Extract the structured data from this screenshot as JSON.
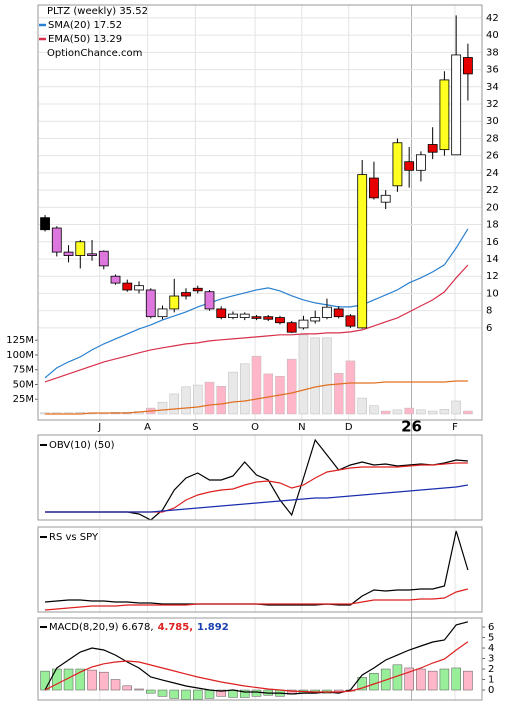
{
  "chart_data": [
    {
      "type": "candlestick",
      "title": "PLTZ (weekly) 35.52",
      "annotation": "OptionChance.com",
      "xlim": [
        -0.6,
        37.2
      ],
      "xticks": [
        {
          "value": 4.66,
          "label": "J"
        },
        {
          "value": 8.73,
          "label": "A"
        },
        {
          "value": 12.8,
          "label": "S"
        },
        {
          "value": 17.88,
          "label": "O"
        },
        {
          "value": 21.86,
          "label": "N"
        },
        {
          "value": 25.85,
          "label": "D"
        },
        {
          "value": 31.2,
          "label": "26"
        },
        {
          "value": 34.9,
          "label": "F"
        }
      ],
      "ylim": [
        -4.7,
        43.5
      ],
      "yticks": [
        6,
        8,
        10,
        12,
        14,
        16,
        18,
        20,
        22,
        24,
        26,
        28,
        30,
        32,
        34,
        36,
        38,
        40,
        42
      ],
      "grid": true,
      "open": [
        18.8,
        17.6,
        14.8,
        14.4,
        14.6,
        14.9,
        12.0,
        11.2,
        10.4,
        10.4,
        7.3,
        8.2,
        9.7,
        10.3,
        10.2,
        8.2,
        7.2,
        7.2,
        7.3,
        7.3,
        7.2,
        6.6,
        6.0,
        6.8,
        7.2,
        8.2,
        7.4,
        6.0,
        23.4,
        20.6,
        22.5,
        25.3,
        24.3,
        27.3,
        26.7,
        26.1,
        37.4
      ],
      "high": [
        19.1,
        17.8,
        15.6,
        16.2,
        16.2,
        15.0,
        12.2,
        11.6,
        11.4,
        10.6,
        8.6,
        11.7,
        10.6,
        10.9,
        10.4,
        8.5,
        7.9,
        7.8,
        7.5,
        7.5,
        7.4,
        6.8,
        7.4,
        8.0,
        9.4,
        8.5,
        7.6,
        25.5,
        25.3,
        22.0,
        28.0,
        27.0,
        26.5,
        29.3,
        35.8,
        42.3,
        39.0
      ],
      "low": [
        17.2,
        14.3,
        13.6,
        12.9,
        13.8,
        12.8,
        11.0,
        10.2,
        10.0,
        7.1,
        7.0,
        7.8,
        9.3,
        10.0,
        8.0,
        7.0,
        7.0,
        6.9,
        6.9,
        6.8,
        6.4,
        5.4,
        5.8,
        6.5,
        7.0,
        7.1,
        6.0,
        5.9,
        20.9,
        19.8,
        21.8,
        22.3,
        23.0,
        25.6,
        26.0,
        26.1,
        32.4
      ],
      "close": [
        17.4,
        14.8,
        14.4,
        16.0,
        14.4,
        13.2,
        11.2,
        10.4,
        10.9,
        7.3,
        8.2,
        9.7,
        10.1,
        10.6,
        8.2,
        7.2,
        7.6,
        7.6,
        7.1,
        7.0,
        6.6,
        5.5,
        6.9,
        7.2,
        8.4,
        7.3,
        6.2,
        23.8,
        21.1,
        21.4,
        27.5,
        24.3,
        26.1,
        26.4,
        34.8,
        37.7,
        35.5
      ],
      "candle_colors": [
        "#000000",
        "#dd77dd",
        "#dd77dd",
        "#ffff22",
        "#dd77dd",
        "#dd77dd",
        "#dd77dd",
        "#e60000",
        "#ffffff",
        "#dd77dd",
        "#ffffff",
        "#ffff22",
        "#e60000",
        "#e60000",
        "#dd77dd",
        "#e60000",
        "#ffffff",
        "#ffffff",
        "#e60000",
        "#e60000",
        "#e60000",
        "#e60000",
        "#ffffff",
        "#ffffff",
        "#ffffff",
        "#e60000",
        "#e60000",
        "#ffff22",
        "#e60000",
        "#ffffff",
        "#ffff22",
        "#e60000",
        "#ffffff",
        "#e60000",
        "#ffff22",
        "#ffffff",
        "#e60000"
      ],
      "series": [
        {
          "name": "SMA(20) 17.52",
          "color": "#2a80d0",
          "values": [
            0.2,
            1.35,
            2.05,
            2.63,
            3.44,
            4.14,
            4.72,
            5.3,
            5.88,
            6.35,
            6.93,
            7.39,
            7.86,
            8.44,
            8.9,
            9.37,
            9.72,
            10.06,
            10.41,
            10.64,
            10.3,
            9.72,
            9.25,
            8.9,
            8.67,
            8.44,
            8.44,
            8.67,
            9.25,
            9.83,
            10.41,
            11.23,
            11.81,
            12.5,
            13.32,
            15.29,
            17.5
          ]
        },
        {
          "name": "EMA(50) 13.29",
          "color": "#d8304a",
          "values": [
            -0.27,
            0.19,
            0.66,
            1.12,
            1.58,
            2.05,
            2.4,
            2.75,
            3.1,
            3.44,
            3.68,
            3.91,
            4.14,
            4.26,
            4.49,
            4.61,
            4.72,
            4.84,
            4.95,
            5.07,
            5.19,
            5.19,
            5.3,
            5.3,
            5.42,
            5.42,
            5.53,
            5.77,
            6.23,
            6.7,
            7.16,
            7.86,
            8.55,
            9.25,
            10.18,
            11.81,
            13.3
          ]
        }
      ],
      "y2lim": [
        -10.2,
        693.2
      ],
      "y2ticks": [
        {
          "value": 25,
          "label": "25M"
        },
        {
          "value": 50,
          "label": "50M"
        },
        {
          "value": 75,
          "label": "75M"
        },
        {
          "value": 100,
          "label": "100M"
        },
        {
          "value": 125,
          "label": "125M"
        }
      ],
      "volume": [
        2,
        2,
        2,
        3,
        2,
        2,
        3,
        3,
        4,
        10,
        20,
        34,
        46,
        49,
        54,
        47,
        71,
        85,
        98,
        68,
        64,
        93,
        134,
        129,
        129,
        69,
        90,
        27,
        14,
        5,
        7,
        10,
        7,
        5,
        8,
        22,
        5
      ],
      "volume_colors": [
        "#e8e8e8",
        "#e8e8e8",
        "#e8e8e8",
        "#e8e8e8",
        "#e8e8e8",
        "#e8e8e8",
        "#e8e8e8",
        "#e8e8e8",
        "#e8e8e8",
        "#ffb6c8",
        "#e8e8e8",
        "#e8e8e8",
        "#e8e8e8",
        "#e8e8e8",
        "#ffb6c8",
        "#ffb6c8",
        "#e8e8e8",
        "#e8e8e8",
        "#ffb6c8",
        "#ffb6c8",
        "#ffb6c8",
        "#ffb6c8",
        "#e8e8e8",
        "#e8e8e8",
        "#e8e8e8",
        "#ffb6c8",
        "#ffb6c8",
        "#e8e8e8",
        "#e8e8e8",
        "#ffb6c8",
        "#e8e8e8",
        "#ffb6c8",
        "#e8e8e8",
        "#e8e8e8",
        "#e8e8e8",
        "#e8e8e8",
        "#ffb6c8"
      ],
      "volume_average": [
        0,
        0,
        0,
        0,
        1.7,
        1.7,
        1.7,
        1.7,
        3.4,
        5.1,
        6.8,
        8.5,
        10.2,
        11.9,
        15.3,
        16.9,
        20.3,
        22,
        25.4,
        28.8,
        32.2,
        35.6,
        40.7,
        45.8,
        49.2,
        50.8,
        52.5,
        52.5,
        52.5,
        54.2,
        54.2,
        54.2,
        54.2,
        54.2,
        54.2,
        55.9,
        55.9
      ],
      "volume_average_color": "#e07020"
    },
    {
      "type": "line",
      "title": "OBV(10) (50)",
      "ylim": [
        0,
        85
      ],
      "series": [
        {
          "color": "#000000",
          "values": [
            8,
            8,
            8,
            8,
            8,
            8,
            8,
            8,
            6,
            0,
            10,
            30,
            42,
            47,
            40,
            40,
            44,
            58,
            45,
            40,
            20,
            5,
            42,
            80,
            65,
            50,
            55,
            58,
            55,
            56,
            54,
            55,
            56,
            55,
            57,
            60,
            59
          ]
        },
        {
          "color": "#dd2020",
          "values": [
            8,
            8,
            8,
            8,
            8,
            8,
            8,
            8,
            8,
            8,
            8,
            12,
            20,
            25,
            28,
            30,
            31,
            35,
            38,
            39,
            37,
            32,
            35,
            42,
            48,
            50,
            52,
            53,
            53,
            53,
            53,
            54,
            55,
            55,
            56,
            57,
            57
          ]
        },
        {
          "color": "#1a2fb0",
          "values": [
            8,
            8,
            8,
            8,
            8,
            8,
            8,
            8,
            8,
            8,
            9,
            10,
            11,
            12,
            13,
            14,
            15,
            16,
            17,
            18,
            19,
            20,
            21,
            22,
            22,
            23,
            24,
            25,
            26,
            27,
            28,
            29,
            30,
            31,
            32,
            33,
            35
          ]
        }
      ]
    },
    {
      "type": "line",
      "title": "RS vs SPY",
      "ylim": [
        0,
        85
      ],
      "series": [
        {
          "color": "#000000",
          "values": [
            10,
            11,
            12,
            12,
            11,
            11,
            10,
            10,
            9,
            9,
            8,
            8,
            8,
            8,
            8,
            8,
            8,
            8,
            8,
            7,
            7,
            7,
            7,
            7,
            8,
            7,
            7,
            16,
            22,
            21,
            22,
            22,
            23,
            23,
            26,
            81,
            42
          ]
        },
        {
          "color": "#dd2020",
          "values": [
            2,
            3,
            4,
            5,
            6,
            6,
            6,
            7,
            7,
            7,
            7,
            7,
            7,
            8,
            8,
            8,
            8,
            8,
            8,
            8,
            8,
            8,
            8,
            8,
            8,
            8,
            8,
            10,
            12,
            12,
            12,
            12,
            13,
            13,
            14,
            20,
            23
          ]
        }
      ]
    },
    {
      "type": "macd",
      "title": "MACD(8,20,9) 6.678,",
      "title_values": [
        {
          "text": "4.785,",
          "color": "#dd2020"
        },
        {
          "text": "1.892",
          "color": "#1a3fb0"
        }
      ],
      "ylim": [
        -0.95,
        6.86
      ],
      "yticks": [
        0,
        1,
        2,
        3,
        4,
        5,
        6
      ],
      "series": [
        {
          "color": "#000000",
          "values": [
            0,
            2.1,
            2.86,
            3.62,
            4.0,
            3.81,
            3.33,
            2.67,
            2.1,
            1.24,
            0.95,
            0.67,
            0.38,
            0.19,
            0,
            -0.1,
            0,
            -0.19,
            -0.19,
            -0.29,
            -0.29,
            -0.38,
            -0.29,
            -0.29,
            -0.19,
            -0.29,
            0,
            1.43,
            2.1,
            2.86,
            3.33,
            3.81,
            4.19,
            4.57,
            4.76,
            6.2,
            6.5
          ]
        },
        {
          "color": "#dd2020",
          "values": [
            0,
            0.57,
            1.14,
            1.71,
            2.19,
            2.5,
            2.67,
            2.76,
            2.67,
            2.38,
            2.1,
            1.81,
            1.52,
            1.24,
            1.0,
            0.76,
            0.57,
            0.38,
            0.24,
            0.1,
            0,
            -0.1,
            -0.14,
            -0.19,
            -0.19,
            -0.19,
            -0.1,
            0.19,
            0.57,
            0.95,
            1.33,
            1.71,
            2.1,
            2.57,
            2.95,
            3.81,
            4.6
          ]
        }
      ],
      "histogram": [
        1.8,
        2.0,
        2.0,
        2.0,
        1.9,
        1.7,
        1.0,
        0.4,
        0.1,
        -0.3,
        -0.6,
        -0.8,
        -0.9,
        -0.9,
        -0.8,
        -0.6,
        -0.7,
        -0.7,
        -0.6,
        -0.5,
        -0.6,
        -0.4,
        -0.3,
        -0.2,
        -0.3,
        -0.2,
        -0.1,
        1.2,
        1.6,
        2.0,
        2.4,
        2.1,
        2.0,
        1.8,
        2.0,
        2.1,
        1.8
      ],
      "histogram_colors": [
        "#99ee99",
        "#99ee99",
        "#99ee99",
        "#99ee99",
        "#ffb6c8",
        "#ffb6c8",
        "#ffb6c8",
        "#ffb6c8",
        "#ffb6c8",
        "#99ee99",
        "#99ee99",
        "#99ee99",
        "#99ee99",
        "#99ee99",
        "#99ee99",
        "#ffb6c8",
        "#99ee99",
        "#99ee99",
        "#99ee99",
        "#99ee99",
        "#99ee99",
        "#ffb6c8",
        "#99ee99",
        "#99ee99",
        "#99ee99",
        "#ffb6c8",
        "#ffb6c8",
        "#99ee99",
        "#99ee99",
        "#99ee99",
        "#99ee99",
        "#ffb6c8",
        "#ffb6c8",
        "#ffb6c8",
        "#99ee99",
        "#99ee99",
        "#ffb6c8"
      ]
    }
  ]
}
